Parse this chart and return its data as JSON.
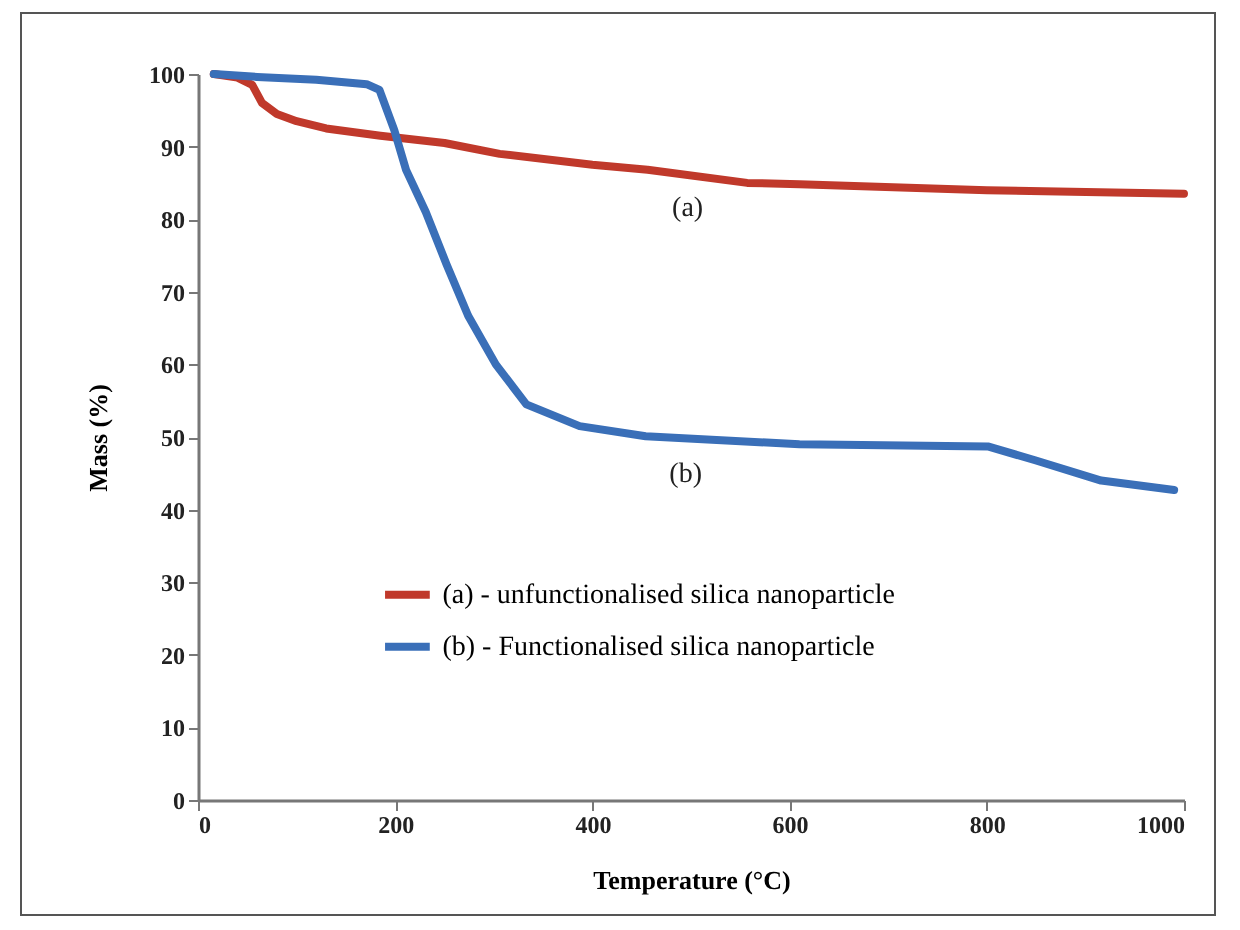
{
  "chart_data": {
    "type": "line",
    "xlabel": "Temperature (°C)",
    "ylabel": "Mass (%)",
    "xlim": [
      0,
      1000
    ],
    "xticks": [
      0,
      200,
      400,
      600,
      800,
      1000
    ],
    "ylim": [
      0,
      100
    ],
    "yticks": [
      0,
      10,
      20,
      30,
      40,
      50,
      60,
      70,
      80,
      90,
      100
    ],
    "grid": false,
    "legend": "bottom left",
    "marker": "none",
    "line_style": "solid",
    "series": [
      {
        "name": "(a) - unfunctionalised silica nanoparticle",
        "color": "#c0392b",
        "x": [
          16,
          40,
          55,
          65,
          80,
          100,
          130,
          185,
          250,
          306,
          400,
          456,
          557,
          610,
          800,
          1000
        ],
        "values": [
          100,
          99.5,
          98.5,
          96,
          94.5,
          93.5,
          92.5,
          91.5,
          90.5,
          89,
          87.5,
          86.8,
          85,
          84.8,
          84,
          83.5
        ]
      },
      {
        "name": "(b) - Functionalised silica nanoparticle",
        "color": "#3a6fb8",
        "x": [
          16,
          60,
          120,
          171,
          184,
          199,
          211,
          231,
          252,
          274,
          302,
          333,
          387,
          454,
          610,
          801,
          849,
          916,
          990
        ],
        "values": [
          100,
          99.6,
          99.2,
          98.6,
          97.8,
          92.3,
          86.8,
          81,
          73.8,
          66.7,
          60,
          54.5,
          51.5,
          50.1,
          49,
          48.7,
          46.8,
          44,
          42.7
        ]
      }
    ],
    "annotations": [
      "(a)",
      "(b)"
    ]
  }
}
